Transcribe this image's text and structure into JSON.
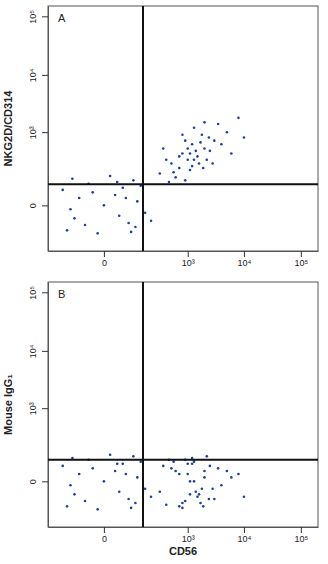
{
  "chart_data": [
    {
      "type": "scatter",
      "label": "A",
      "y_label": "NKG2D/CD314",
      "x": [
        -80,
        20,
        60,
        -30,
        100,
        -120,
        0,
        40,
        -60,
        150,
        80,
        -10,
        30,
        -150,
        120,
        10,
        -40,
        70,
        -90,
        50,
        -20,
        200,
        -100,
        90,
        25,
        300,
        500,
        800,
        1000,
        1200,
        1500,
        2000,
        700,
        900,
        1100,
        1800,
        2500,
        3000,
        600,
        400,
        1300,
        1600,
        2200,
        4000,
        5000,
        800,
        1000,
        1400,
        700,
        3500,
        900,
        1200,
        2800,
        6000,
        10000,
        350,
        1700,
        2000,
        1100,
        550,
        1300,
        2400,
        8000,
        450,
        1900
      ],
      "values": [
        -40,
        30,
        -60,
        80,
        10,
        -100,
        0,
        60,
        20,
        -20,
        100,
        -120,
        -30,
        50,
        70,
        130,
        -70,
        -110,
        110,
        20,
        40,
        -50,
        -10,
        -80,
        90,
        150,
        250,
        400,
        300,
        600,
        350,
        500,
        200,
        700,
        180,
        900,
        450,
        700,
        120,
        300,
        1200,
        250,
        300,
        600,
        1000,
        900,
        500,
        450,
        350,
        1400,
        100,
        220,
        250,
        400,
        800,
        500,
        650,
        1500,
        400,
        160,
        300,
        800,
        1800,
        90,
        200
      ],
      "color": "#1f3f9e",
      "marker": "dot",
      "log": true,
      "xlim": [
        -300,
        200000
      ],
      "ylim": [
        -300,
        150000
      ],
      "xticks": [
        0,
        {
          "value": 1000,
          "label": "10³"
        },
        {
          "value": 10000,
          "label": "10⁴"
        },
        {
          "value": 100000,
          "label": "10⁵"
        }
      ],
      "yticks": [
        0,
        {
          "value": 1000,
          "label": "10³"
        },
        {
          "value": 10000,
          "label": "10⁴"
        },
        {
          "value": 100000,
          "label": "10⁵"
        }
      ],
      "gate_x": 135,
      "gate_y": 77
    },
    {
      "type": "scatter",
      "label": "B",
      "y_label": "Mouse IgG₁",
      "x_label": "CD56",
      "x": [
        -80,
        20,
        60,
        -30,
        100,
        -120,
        0,
        40,
        -60,
        150,
        80,
        -10,
        30,
        -150,
        120,
        10,
        -40,
        70,
        -90,
        50,
        -20,
        200,
        -100,
        90,
        25,
        300,
        500,
        800,
        1000,
        1200,
        1500,
        2000,
        700,
        900,
        1100,
        1800,
        2500,
        3000,
        600,
        400,
        1300,
        1600,
        2200,
        4000,
        5000,
        800,
        1000,
        1400,
        700,
        3500,
        900,
        1200,
        2800,
        6000,
        10000,
        350,
        1700,
        2000,
        1100,
        550,
        1300,
        2400,
        8000,
        450,
        1900
      ],
      "values": [
        -40,
        30,
        -60,
        80,
        10,
        -100,
        0,
        60,
        20,
        -20,
        100,
        -120,
        -30,
        50,
        70,
        110,
        -70,
        -110,
        90,
        20,
        40,
        -50,
        -10,
        -80,
        60,
        -30,
        40,
        -80,
        20,
        60,
        -50,
        10,
        -100,
        80,
        0,
        -20,
        50,
        -60,
        30,
        -90,
        70,
        -40,
        100,
        -10,
        30,
        -110,
        60,
        -30,
        20,
        40,
        -70,
        90,
        -20,
        10,
        -50,
        50,
        -80,
        30,
        -40,
        70,
        0,
        -60,
        20,
        80,
        -100
      ],
      "color": "#1f3f9e",
      "marker": "dot",
      "log": true,
      "xlim": [
        -300,
        200000
      ],
      "ylim": [
        -300,
        150000
      ],
      "xticks": [
        0,
        {
          "value": 1000,
          "label": "10³"
        },
        {
          "value": 10000,
          "label": "10⁴"
        },
        {
          "value": 100000,
          "label": "10⁵"
        }
      ],
      "yticks": [
        0,
        {
          "value": 1000,
          "label": "10³"
        },
        {
          "value": 10000,
          "label": "10⁴"
        },
        {
          "value": 100000,
          "label": "10⁵"
        }
      ],
      "gate_x": 135,
      "gate_y": 80
    }
  ]
}
